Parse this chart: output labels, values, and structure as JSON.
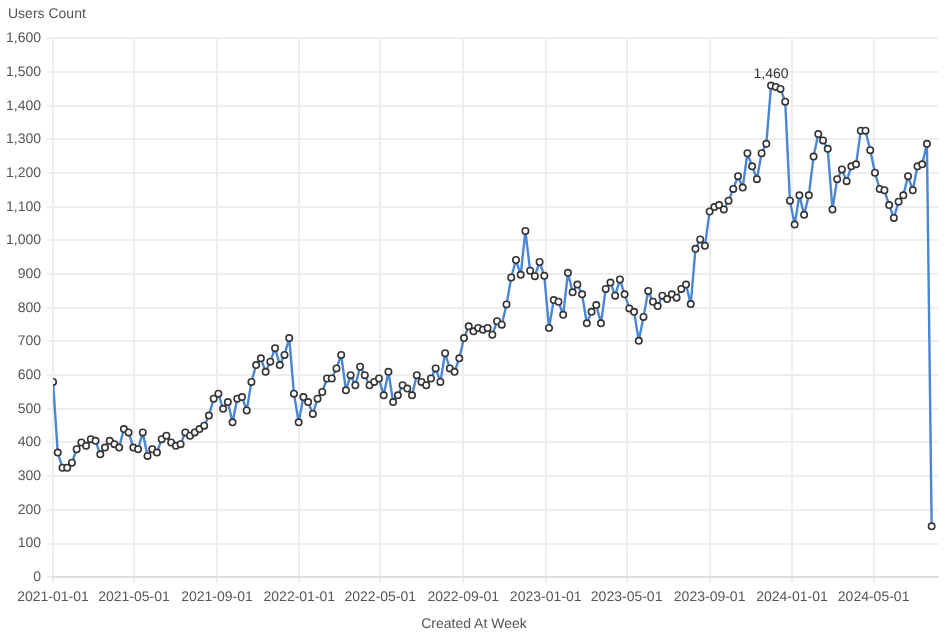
{
  "chart_data": {
    "type": "line",
    "xlabel": "Created At Week",
    "ylabel": "Users Count",
    "x": [
      "2021-01-01",
      "2021-01-08",
      "2021-01-15",
      "2021-01-22",
      "2021-01-29",
      "2021-02-05",
      "2021-02-12",
      "2021-02-19",
      "2021-02-26",
      "2021-03-05",
      "2021-03-12",
      "2021-03-19",
      "2021-03-26",
      "2021-04-02",
      "2021-04-09",
      "2021-04-16",
      "2021-04-23",
      "2021-04-30",
      "2021-05-07",
      "2021-05-14",
      "2021-05-21",
      "2021-05-28",
      "2021-06-04",
      "2021-06-11",
      "2021-06-18",
      "2021-06-25",
      "2021-07-02",
      "2021-07-09",
      "2021-07-16",
      "2021-07-23",
      "2021-07-30",
      "2021-08-06",
      "2021-08-13",
      "2021-08-20",
      "2021-08-27",
      "2021-09-03",
      "2021-09-10",
      "2021-09-17",
      "2021-09-24",
      "2021-10-01",
      "2021-10-08",
      "2021-10-15",
      "2021-10-22",
      "2021-10-29",
      "2021-11-05",
      "2021-11-12",
      "2021-11-19",
      "2021-11-26",
      "2021-12-03",
      "2021-12-10",
      "2021-12-17",
      "2021-12-24",
      "2021-12-31",
      "2022-01-07",
      "2022-01-14",
      "2022-01-21",
      "2022-01-28",
      "2022-02-04",
      "2022-02-11",
      "2022-02-18",
      "2022-02-25",
      "2022-03-04",
      "2022-03-11",
      "2022-03-18",
      "2022-03-25",
      "2022-04-01",
      "2022-04-08",
      "2022-04-15",
      "2022-04-22",
      "2022-04-29",
      "2022-05-06",
      "2022-05-13",
      "2022-05-20",
      "2022-05-27",
      "2022-06-03",
      "2022-06-10",
      "2022-06-17",
      "2022-06-24",
      "2022-07-01",
      "2022-07-08",
      "2022-07-15",
      "2022-07-22",
      "2022-07-29",
      "2022-08-05",
      "2022-08-12",
      "2022-08-19",
      "2022-08-26",
      "2022-09-02",
      "2022-09-09",
      "2022-09-16",
      "2022-09-23",
      "2022-09-30",
      "2022-10-07",
      "2022-10-14",
      "2022-10-21",
      "2022-10-28",
      "2022-11-04",
      "2022-11-11",
      "2022-11-18",
      "2022-11-25",
      "2022-12-02",
      "2022-12-09",
      "2022-12-16",
      "2022-12-23",
      "2022-12-30",
      "2023-01-06",
      "2023-01-13",
      "2023-01-20",
      "2023-01-27",
      "2023-02-03",
      "2023-02-10",
      "2023-02-17",
      "2023-02-24",
      "2023-03-03",
      "2023-03-10",
      "2023-03-17",
      "2023-03-24",
      "2023-03-31",
      "2023-04-07",
      "2023-04-14",
      "2023-04-21",
      "2023-04-28",
      "2023-05-05",
      "2023-05-12",
      "2023-05-19",
      "2023-05-26",
      "2023-06-02",
      "2023-06-09",
      "2023-06-16",
      "2023-06-23",
      "2023-06-30",
      "2023-07-07",
      "2023-07-14",
      "2023-07-21",
      "2023-07-28",
      "2023-08-04",
      "2023-08-11",
      "2023-08-18",
      "2023-08-25",
      "2023-09-01",
      "2023-09-08",
      "2023-09-15",
      "2023-09-22",
      "2023-09-29",
      "2023-10-06",
      "2023-10-13",
      "2023-10-20",
      "2023-10-27",
      "2023-11-03",
      "2023-11-10",
      "2023-11-17",
      "2023-11-24",
      "2023-12-01",
      "2023-12-08",
      "2023-12-15",
      "2023-12-22",
      "2023-12-29",
      "2024-01-05",
      "2024-01-12",
      "2024-01-19",
      "2024-01-26",
      "2024-02-02",
      "2024-02-09",
      "2024-02-16",
      "2024-02-23",
      "2024-03-01",
      "2024-03-08",
      "2024-03-15",
      "2024-03-22",
      "2024-03-29",
      "2024-04-05",
      "2024-04-12",
      "2024-04-19",
      "2024-04-26",
      "2024-05-03",
      "2024-05-10",
      "2024-05-17",
      "2024-05-24",
      "2024-05-31",
      "2024-06-07",
      "2024-06-14",
      "2024-06-21",
      "2024-06-28",
      "2024-07-05",
      "2024-07-12",
      "2024-07-19",
      "2024-07-26"
    ],
    "series": [
      {
        "color": "#4a86d4",
        "values": [
          580,
          370,
          325,
          325,
          340,
          380,
          400,
          390,
          410,
          405,
          365,
          385,
          405,
          395,
          385,
          440,
          430,
          385,
          380,
          430,
          360,
          380,
          370,
          410,
          420,
          400,
          390,
          395,
          430,
          420,
          430,
          440,
          450,
          480,
          530,
          545,
          500,
          520,
          460,
          530,
          535,
          495,
          580,
          630,
          650,
          610,
          640,
          680,
          630,
          660,
          710,
          545,
          460,
          535,
          520,
          485,
          530,
          550,
          590,
          590,
          620,
          660,
          555,
          600,
          570,
          625,
          600,
          570,
          580,
          590,
          540,
          610,
          520,
          540,
          570,
          560,
          540,
          600,
          580,
          570,
          590,
          620,
          580,
          665,
          620,
          610,
          650,
          710,
          745,
          730,
          740,
          735,
          740,
          720,
          760,
          750,
          810,
          890,
          942,
          898,
          1028,
          910,
          894,
          936,
          895,
          740,
          823,
          818,
          779,
          904,
          846,
          869,
          840,
          754,
          788,
          808,
          754,
          856,
          875,
          836,
          884,
          840,
          798,
          788,
          702,
          773,
          850,
          818,
          805,
          836,
          826,
          840,
          830,
          856,
          869,
          811,
          975,
          1003,
          984,
          1086,
          1099,
          1105,
          1092,
          1118,
          1153,
          1191,
          1157,
          1259,
          1220,
          1182,
          1259,
          1287,
          1460,
          1456,
          1450,
          1412,
          1118,
          1047,
          1134,
          1076,
          1134,
          1249,
          1316,
          1297,
          1272,
          1092,
          1182,
          1211,
          1176,
          1220,
          1226,
          1326,
          1326,
          1268,
          1201,
          1153,
          1149,
          1105,
          1067,
          1115,
          1134,
          1191,
          1149,
          1220,
          1226,
          1287,
          151
        ]
      }
    ],
    "annotations": [
      {
        "text": "1,460",
        "x": "2023-12-01",
        "y": 1460
      }
    ],
    "xlim": [
      "2021-01-01",
      "2024-08-05"
    ],
    "xticks": [
      "2021-01-01",
      "2021-05-01",
      "2021-09-01",
      "2022-01-01",
      "2022-05-01",
      "2022-09-01",
      "2023-01-01",
      "2023-05-01",
      "2023-09-01",
      "2024-01-01",
      "2024-05-01"
    ],
    "ylim": [
      0,
      1600
    ],
    "yticks": [
      0,
      100,
      200,
      300,
      400,
      500,
      600,
      700,
      800,
      900,
      {
        "value": 1000,
        "label": "1,000"
      },
      {
        "value": 1100,
        "label": "1,100"
      },
      {
        "value": 1200,
        "label": "1,200"
      },
      {
        "value": 1300,
        "label": "1,300"
      },
      {
        "value": 1400,
        "label": "1,400"
      },
      {
        "value": 1500,
        "label": "1,500"
      },
      {
        "value": 1600,
        "label": "1,600"
      }
    ],
    "grid": true,
    "legend": false,
    "marker": "circle",
    "line_style": "solid"
  }
}
